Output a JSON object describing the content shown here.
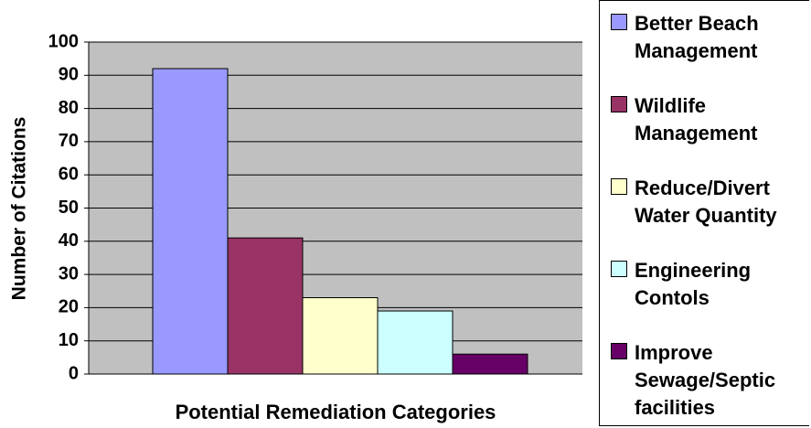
{
  "chart_data": {
    "type": "bar",
    "x_label": "Potential Remediation Categories",
    "y_label": "Number of Citations",
    "categories": [
      null
    ],
    "series": [
      {
        "name": "Better Beach Management",
        "color": "#9999ff",
        "values": [
          92
        ]
      },
      {
        "name": "Wildlife Management",
        "color": "#993366",
        "values": [
          41
        ]
      },
      {
        "name": "Reduce/Divert Water Quantity",
        "color": "#ffffcc",
        "values": [
          23
        ]
      },
      {
        "name": "Engineering Contols",
        "color": "#ccffff",
        "values": [
          19
        ]
      },
      {
        "name": "Improve Sewage/Septic facilities",
        "color": "#660066",
        "values": [
          6
        ]
      }
    ],
    "ylim": [
      0,
      100
    ],
    "yticks": [
      0,
      10,
      20,
      30,
      40,
      50,
      60,
      70,
      80,
      90,
      100
    ],
    "grid": true,
    "legend": "right"
  }
}
